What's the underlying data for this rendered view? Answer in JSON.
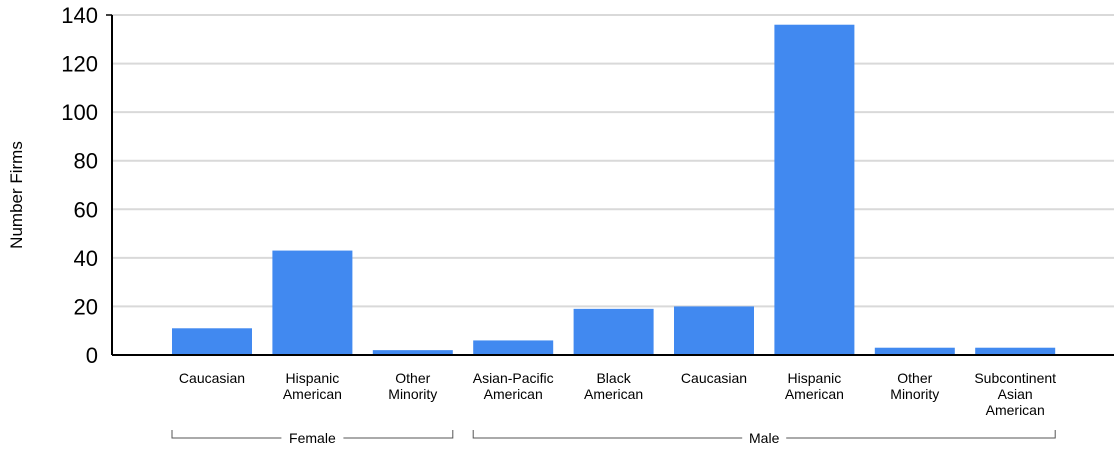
{
  "chart_data": {
    "type": "bar",
    "ylabel": "Number Firms",
    "xlabel": "",
    "ylim": [
      0,
      140
    ],
    "yticks": [
      0,
      20,
      40,
      60,
      80,
      100,
      120,
      140
    ],
    "grid": true,
    "bar_color": "#4189F0",
    "grid_color": "#D9D9D9",
    "categories": [
      {
        "label": "Caucasian",
        "group": "Female"
      },
      {
        "label": "Hispanic American",
        "group": "Female"
      },
      {
        "label": "Other Minority",
        "group": "Female"
      },
      {
        "label": "Asian-Pacific American",
        "group": "Male"
      },
      {
        "label": "Black American",
        "group": "Male"
      },
      {
        "label": "Caucasian",
        "group": "Male"
      },
      {
        "label": "Hispanic American",
        "group": "Male"
      },
      {
        "label": "Other Minority",
        "group": "Male"
      },
      {
        "label": "Subcontinent Asian American",
        "group": "Male"
      }
    ],
    "values": [
      11,
      43,
      2,
      6,
      19,
      20,
      136,
      3,
      3
    ],
    "groups": [
      "Female",
      "Male"
    ]
  }
}
